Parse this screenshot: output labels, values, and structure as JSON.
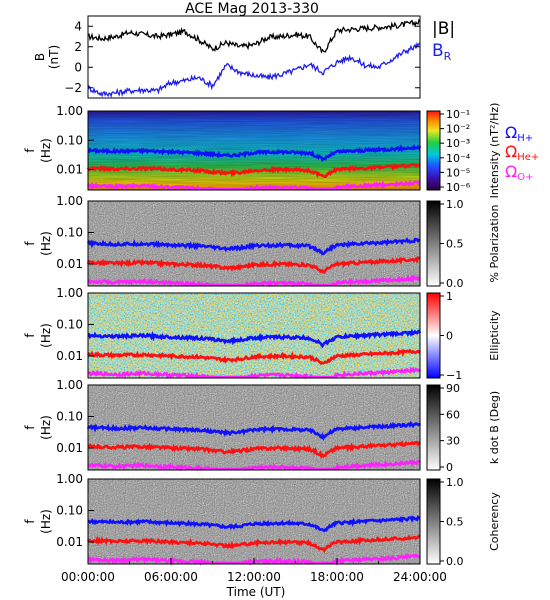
{
  "title": "ACE Mag 2013-330",
  "xlabel": "Time (UT)",
  "x_ticks": [
    "00:00:00",
    "06:00:00",
    "12:00:00",
    "18:00:00",
    "24:00:00"
  ],
  "freq_ticks": [
    "1.00",
    "0.10",
    "0.01"
  ],
  "freq_label_f": "f",
  "freq_label_hz": "(Hz)",
  "panel1": {
    "ylabel_main": "B",
    "ylabel_unit": "(nT)",
    "yticks": [
      "4",
      "2",
      "0",
      "−2"
    ],
    "legend_B": "|B|",
    "legend_BR": "B",
    "legend_BR_sub": "R"
  },
  "omega_labels": [
    {
      "main": "Ω",
      "sub": "H+"
    },
    {
      "main": "Ω",
      "sub": "He+"
    },
    {
      "main": "Ω",
      "sub": "O+"
    }
  ],
  "colorbars": [
    {
      "label": "Intensity (nT²/Hz)",
      "ticks": [
        "10⁻¹",
        "10⁻²",
        "10⁻³",
        "10⁻⁴",
        "10⁻⁵",
        "10⁻⁶"
      ]
    },
    {
      "label": "% Polarization",
      "ticks": [
        "1.0",
        "0.5",
        "0.0"
      ]
    },
    {
      "label": "Ellipticity",
      "ticks": [
        "1",
        "0",
        "−1"
      ]
    },
    {
      "label": "k dot B (Deg)",
      "ticks": [
        "90",
        "60",
        "30",
        "0"
      ]
    },
    {
      "label": "Coherency",
      "ticks": [
        "1.0",
        "0.5",
        "0.0"
      ]
    }
  ],
  "colors": {
    "B": "#000000",
    "BR": "#1f1fe6",
    "H": "#1010ff",
    "He": "#ff1010",
    "O": "#ff20ff"
  },
  "chart_data": {
    "type": "line",
    "x_range_hours": [
      0,
      24
    ],
    "panel1": {
      "ylim": [
        -3,
        5
      ],
      "series": [
        {
          "name": "|B|",
          "x": [
            0,
            1,
            2,
            3,
            4,
            5,
            6,
            7,
            8,
            9,
            10,
            11,
            12,
            13,
            14,
            15,
            16,
            17,
            18,
            19,
            20,
            21,
            22,
            23,
            24
          ],
          "values": [
            3.0,
            2.8,
            3.0,
            3.4,
            3.2,
            3.0,
            3.2,
            3.5,
            2.7,
            1.8,
            2.4,
            2.0,
            2.2,
            2.9,
            3.0,
            3.2,
            3.0,
            1.4,
            3.6,
            3.7,
            3.8,
            3.9,
            4.0,
            4.2,
            4.4
          ]
        },
        {
          "name": "B_R",
          "x": [
            0,
            1,
            2,
            3,
            4,
            5,
            6,
            7,
            8,
            9,
            10,
            11,
            12,
            13,
            14,
            15,
            16,
            17,
            18,
            19,
            20,
            21,
            22,
            23,
            24
          ],
          "values": [
            -2.0,
            -2.6,
            -2.5,
            -2.3,
            -2.2,
            -2.3,
            -1.5,
            -1.3,
            -1.0,
            -1.8,
            0.2,
            -0.5,
            -0.8,
            -1.0,
            -0.7,
            -0.3,
            0.3,
            -0.5,
            0.5,
            1.0,
            0.2,
            0.0,
            0.8,
            1.6,
            2.2
          ]
        }
      ]
    },
    "spectral_panels": {
      "ylim_hz": [
        0.002,
        1.0
      ],
      "gyrofrequency_series": [
        {
          "name": "Ω_H+",
          "x": [
            0,
            2,
            4,
            6,
            8,
            10,
            11,
            12,
            14,
            16,
            17,
            18,
            20,
            22,
            24
          ],
          "values": [
            0.045,
            0.042,
            0.044,
            0.04,
            0.037,
            0.03,
            0.032,
            0.038,
            0.04,
            0.037,
            0.022,
            0.04,
            0.045,
            0.05,
            0.057
          ]
        },
        {
          "name": "Ω_He+",
          "x": [
            0,
            2,
            4,
            6,
            8,
            10,
            11,
            12,
            14,
            16,
            17,
            18,
            20,
            22,
            24
          ],
          "values": [
            0.0112,
            0.0105,
            0.011,
            0.01,
            0.0093,
            0.0075,
            0.008,
            0.0095,
            0.01,
            0.0093,
            0.0055,
            0.01,
            0.0112,
            0.0125,
            0.0143
          ]
        },
        {
          "name": "Ω_O+",
          "x": [
            0,
            2,
            4,
            6,
            8,
            10,
            11,
            12,
            14,
            16,
            17,
            18,
            20,
            22,
            24
          ],
          "values": [
            0.0028,
            0.0026,
            0.0028,
            0.0025,
            0.0023,
            0.0019,
            0.002,
            0.0024,
            0.0025,
            0.0023,
            0.0014,
            0.0025,
            0.0028,
            0.0031,
            0.0036
          ]
        }
      ]
    }
  }
}
